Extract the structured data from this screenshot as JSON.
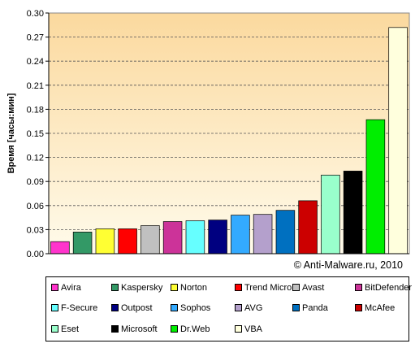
{
  "chart_data": {
    "type": "bar",
    "title": "",
    "xlabel": "",
    "ylabel": "Время [часы:мин]",
    "ylim": [
      0,
      0.3
    ],
    "yticks": [
      "0.00",
      "0.03",
      "0.06",
      "0.09",
      "0.12",
      "0.15",
      "0.18",
      "0.21",
      "0.24",
      "0.27",
      "0.30"
    ],
    "grid": true,
    "legend_position": "bottom",
    "copyright": "© Anti-Malware.ru,  2010",
    "categories": [
      "Avira",
      "Kaspersky",
      "Norton",
      "Trend Micro",
      "Avast",
      "BitDefender",
      "F-Secure",
      "Outpost",
      "Sophos",
      "AVG",
      "Panda",
      "McAfee",
      "Eset",
      "Microsoft",
      "Dr.Web",
      "VBA"
    ],
    "values": [
      0.015,
      0.027,
      0.031,
      0.031,
      0.035,
      0.04,
      0.041,
      0.042,
      0.048,
      0.049,
      0.054,
      0.066,
      0.098,
      0.103,
      0.167,
      0.282
    ],
    "colors": [
      "#ff33cc",
      "#339966",
      "#ffff33",
      "#ff0000",
      "#c0c0c0",
      "#cc3399",
      "#66ffff",
      "#000080",
      "#33aaff",
      "#b4a0cc",
      "#0070c0",
      "#cc0000",
      "#99ffcc",
      "#000000",
      "#00ee00",
      "#ffffdd"
    ]
  }
}
